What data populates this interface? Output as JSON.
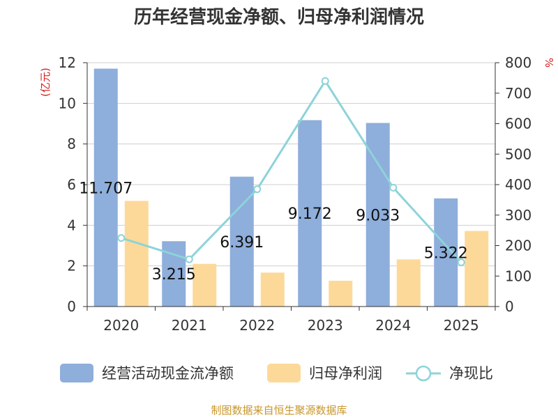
{
  "chart_data": {
    "type": "bar",
    "title": "历年经营现金净额、归母净利润情况",
    "categories": [
      "2020",
      "2021",
      "2022",
      "2023",
      "2024",
      "2025"
    ],
    "series": [
      {
        "name": "经营活动现金流净额",
        "type": "bar",
        "axis": "left",
        "color": "#8eaedb",
        "values": [
          11.707,
          3.215,
          6.391,
          9.172,
          9.033,
          5.322
        ]
      },
      {
        "name": "归母净利润",
        "type": "bar",
        "axis": "left",
        "color": "#fdd999",
        "values": [
          5.2,
          2.1,
          1.67,
          1.27,
          2.32,
          3.72
        ]
      },
      {
        "name": "净现比",
        "type": "line",
        "axis": "right",
        "color": "#8dd3d8",
        "values": [
          225,
          155,
          385,
          740,
          390,
          145
        ]
      }
    ],
    "data_labels": [
      "11.707",
      "3.215",
      "6.391",
      "9.172",
      "9.033",
      "5.322"
    ],
    "y_left": {
      "unit": "(亿元)",
      "ylim": [
        0,
        12
      ],
      "ticks": [
        0,
        2,
        4,
        6,
        8,
        10,
        12
      ]
    },
    "y_right": {
      "unit": "%",
      "ylim": [
        0,
        800
      ],
      "ticks": [
        0,
        100,
        200,
        300,
        400,
        500,
        600,
        700,
        800
      ]
    },
    "grid": true,
    "legend_position": "bottom",
    "source": "制图数据来自恒生聚源数据库"
  }
}
